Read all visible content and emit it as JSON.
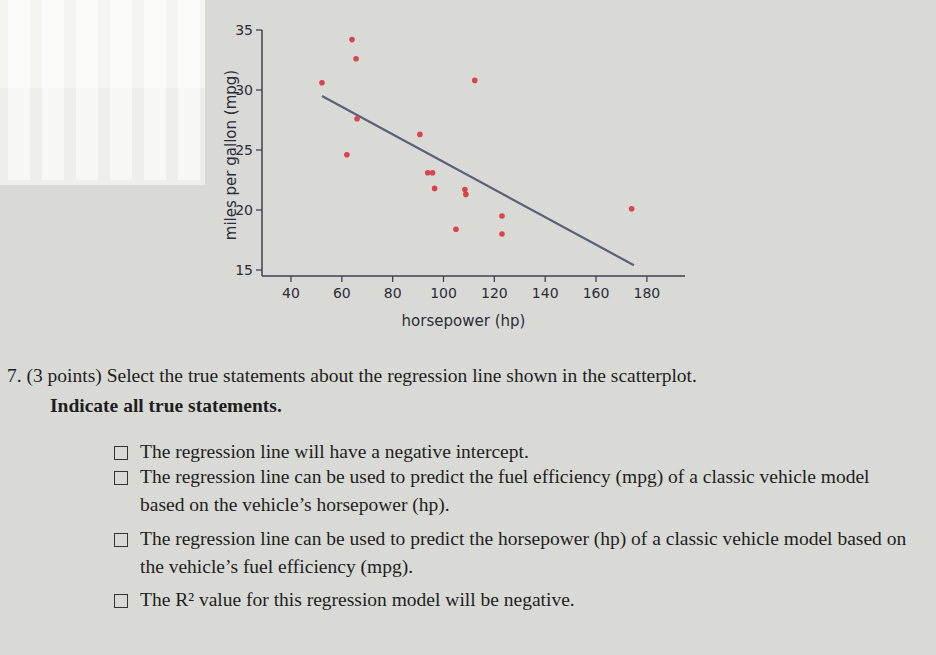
{
  "chart_data": {
    "type": "scatter",
    "x_label": "horsepower (hp)",
    "y_label": "miles per gallon (mpg)",
    "x": [
      52.2,
      64,
      65.6,
      66,
      62,
      90.7,
      93.8,
      95.7,
      96.5,
      108.4,
      108.8,
      112.3,
      104.9,
      123,
      123,
      174
    ],
    "y": [
      30.6,
      34.2,
      32.6,
      27.6,
      24.6,
      26.3,
      23.1,
      23.1,
      21.8,
      21.7,
      21.3,
      30.8,
      18.4,
      19.5,
      18,
      20.1
    ],
    "color": "#d8434f",
    "regression_line": {
      "x": [
        52.2,
        174.9
      ],
      "y": [
        29.5,
        15.4
      ],
      "color": "#5b5f78"
    },
    "xlim": [
      28.6,
      195
    ],
    "ylim": [
      14.5,
      35
    ],
    "xticks": [
      40,
      60,
      80,
      100,
      120,
      140,
      160,
      180
    ],
    "yticks": [
      15,
      20,
      25,
      30,
      35
    ],
    "grid": false
  },
  "question": {
    "prompt": "7. (3 points) Select the true statements about the regression line shown in the scatterplot.",
    "instruction": "Indicate all true statements.",
    "options": [
      "The regression line will have a negative intercept.",
      "The regression line can be used to predict the fuel efficiency (mpg) of a classic vehicle model based on the vehicle’s horsepower (hp).",
      "The regression line can be used to predict the horsepower (hp) of a classic vehicle model based on the vehicle’s fuel efficiency (mpg).",
      "The R² value for this regression model will be negative."
    ]
  }
}
